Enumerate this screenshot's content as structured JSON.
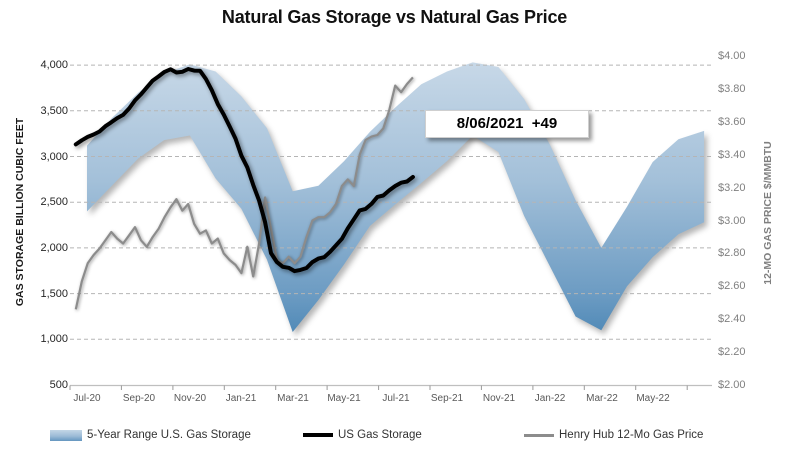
{
  "title": "Natural Gas Storage vs Natural Gas Price",
  "left_axis": {
    "title": "GAS STORAGE BILLION CUBIC FEET",
    "ticks": [
      "4,000",
      "3,500",
      "3,000",
      "2,500",
      "2,000",
      "1,500",
      "1,000",
      "500"
    ]
  },
  "right_axis": {
    "title": "12-MO GAS PRICE $/MMBTU",
    "ticks": [
      "$4.00",
      "$3.80",
      "$3.60",
      "$3.40",
      "$3.20",
      "$3.00",
      "$2.80",
      "$2.60",
      "$2.40",
      "$2.20",
      "$2.00"
    ]
  },
  "x_axis": {
    "ticks": [
      "Jul-20",
      "Sep-20",
      "Nov-20",
      "Jan-21",
      "Mar-21",
      "May-21",
      "Jul-21",
      "Sep-21",
      "Nov-21",
      "Jan-22",
      "Mar-22",
      "May-22"
    ]
  },
  "annotation": {
    "text": "8/06/2021  +49",
    "date": "8/06/2021",
    "weekly_change": "+49"
  },
  "legend": [
    {
      "label": "5-Year Range U.S. Gas Storage",
      "swatch": "area-gradient-blue"
    },
    {
      "label": "US Gas Storage",
      "swatch": "thick-black-line"
    },
    {
      "label": "Henry Hub 12-Mo Gas Price",
      "swatch": "gray-line"
    }
  ],
  "colors": {
    "band_gradient": [
      "#c9d9e8",
      "#a3c0d9",
      "#6d9cc3",
      "#2b72a8"
    ],
    "storage_line": "#000000",
    "price_line": "#8c8c8c",
    "gridline": "#b5b5b5",
    "left_tick_text": "#262626",
    "right_tick_text": "#808080",
    "x_tick_text": "#595959"
  },
  "chart_data": {
    "type": "combo",
    "title": "Natural Gas Storage vs Natural Gas Price",
    "left_axis": {
      "label": "GAS STORAGE BILLION CUBIC FEET",
      "range": [
        500,
        4000
      ],
      "tick_step": 500,
      "units": "Bcf"
    },
    "right_axis": {
      "label": "12-MO GAS PRICE $/MMBTU",
      "range": [
        2.0,
        4.0
      ],
      "tick_step": 0.2,
      "units": "$/MMBtu"
    },
    "x_range": {
      "start": "2020-07",
      "end": "2022-07"
    },
    "grid": "dashed-horizontal",
    "legend_position": "bottom",
    "series": [
      {
        "name": "5-Year Range U.S. Gas Storage",
        "type": "area-range",
        "axis": "left",
        "start_month": "2020-07",
        "step_months": 1,
        "max": [
          3120,
          3430,
          3700,
          3910,
          4010,
          3930,
          3660,
          3310,
          2620,
          2680,
          2950,
          3270,
          3540,
          3790,
          3930,
          4030,
          3980,
          3630,
          3130,
          2520,
          2000,
          2450,
          2940,
          3190,
          3280
        ],
        "min": [
          2400,
          2690,
          2980,
          3180,
          3230,
          2760,
          2430,
          1870,
          1080,
          1430,
          1820,
          2240,
          2480,
          2710,
          2950,
          3230,
          3050,
          2350,
          1800,
          1250,
          1100,
          1580,
          1900,
          2150,
          2280
        ]
      },
      {
        "name": "US Gas Storage",
        "type": "line",
        "axis": "left",
        "start_date": "2020-07-03",
        "step_days": 7,
        "end_date": "2021-08-06",
        "values": [
          3133,
          3178,
          3215,
          3241,
          3274,
          3332,
          3375,
          3420,
          3455,
          3525,
          3614,
          3680,
          3756,
          3831,
          3877,
          3926,
          3955,
          3919,
          3927,
          3958,
          3940,
          3939,
          3848,
          3726,
          3574,
          3460,
          3330,
          3196,
          3009,
          2881,
          2689,
          2518,
          2281,
          1943,
          1845,
          1793,
          1782,
          1746,
          1760,
          1780,
          1845,
          1883,
          1898,
          1958,
          2029,
          2100,
          2215,
          2313,
          2411,
          2427,
          2482,
          2558,
          2574,
          2629,
          2678,
          2714,
          2727,
          2776
        ]
      },
      {
        "name": "Henry Hub 12-Mo Gas Price",
        "type": "line",
        "axis": "right",
        "start_date": "2020-07-03",
        "step_days": 7,
        "end_date": "2021-08-06",
        "values": [
          2.46,
          2.63,
          2.74,
          2.79,
          2.83,
          2.88,
          2.93,
          2.89,
          2.86,
          2.91,
          2.96,
          2.88,
          2.84,
          2.9,
          2.95,
          3.02,
          3.08,
          3.13,
          3.06,
          3.1,
          2.98,
          2.92,
          2.94,
          2.86,
          2.89,
          2.8,
          2.76,
          2.73,
          2.68,
          2.84,
          2.66,
          2.86,
          3.14,
          2.95,
          2.76,
          2.74,
          2.78,
          2.74,
          2.78,
          2.9,
          3.0,
          3.02,
          3.02,
          3.05,
          3.1,
          3.21,
          3.25,
          3.21,
          3.4,
          3.49,
          3.51,
          3.52,
          3.56,
          3.67,
          3.82,
          3.78,
          3.83,
          3.87
        ]
      }
    ],
    "annotation": {
      "label": "8/06/2021  +49",
      "attached_to": "US Gas Storage last point"
    }
  }
}
